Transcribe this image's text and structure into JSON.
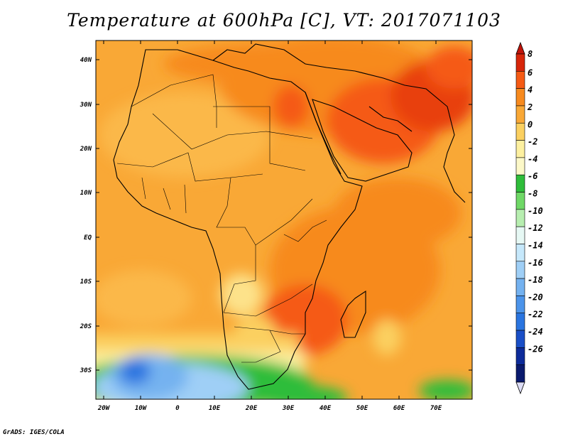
{
  "title": "Temperature at 600hPa [C], VT: 2017071103",
  "credit": "GrADS: IGES/COLA",
  "map": {
    "lat_labels": [
      "40N",
      "30N",
      "20N",
      "10N",
      "EQ",
      "10S",
      "20S",
      "30S"
    ],
    "lon_labels": [
      "20W",
      "10W",
      "0",
      "10E",
      "20E",
      "30E",
      "40E",
      "50E",
      "60E",
      "70E"
    ]
  },
  "colorbar": {
    "labels": [
      "8",
      "6",
      "4",
      "2",
      "0",
      "-2",
      "-4",
      "-6",
      "-8",
      "-10",
      "-12",
      "-14",
      "-16",
      "-18",
      "-20",
      "-22",
      "-24",
      "-26"
    ],
    "colors": [
      "#d7260a",
      "#f55a14",
      "#f78a1e",
      "#f9a836",
      "#fbd060",
      "#fdf0a0",
      "#fcf8c8",
      "#2fbd3a",
      "#6fd866",
      "#b7eeb0",
      "#e6f8f4",
      "#c6e8fb",
      "#9fcff6",
      "#74b2f0",
      "#4c94ea",
      "#2a75e0",
      "#1a4fc7",
      "#0d2b9a",
      "#0a1a6e"
    ],
    "over_color": "#c0140a",
    "under_color": "#dcdcf5"
  }
}
